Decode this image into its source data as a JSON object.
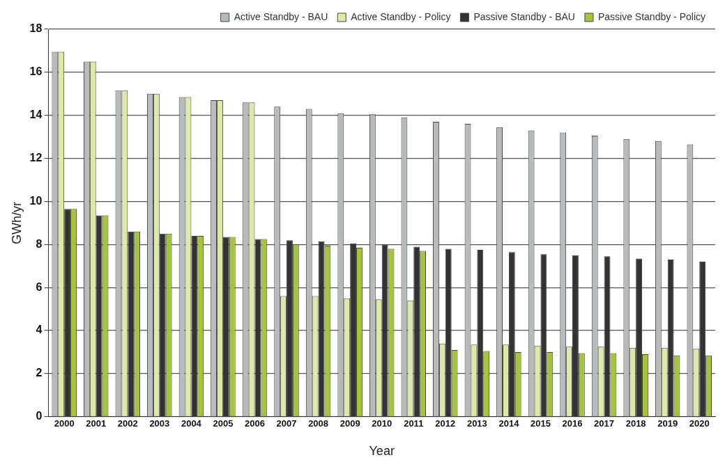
{
  "chart_data": {
    "type": "bar",
    "xlabel": "Year",
    "ylabel": "GWh/yr",
    "categories": [
      "2000",
      "2001",
      "2002",
      "2003",
      "2004",
      "2005",
      "2006",
      "2007",
      "2008",
      "2009",
      "2010",
      "2011",
      "2012",
      "2013",
      "2014",
      "2015",
      "2016",
      "2017",
      "2018",
      "2019",
      "2020"
    ],
    "series": [
      {
        "name": "Active Standby - BAU",
        "color": "#b9babc",
        "values": [
          16.95,
          16.5,
          15.15,
          15.0,
          14.85,
          14.7,
          14.6,
          14.4,
          14.3,
          14.1,
          14.05,
          13.9,
          13.7,
          13.6,
          13.45,
          13.3,
          13.2,
          13.05,
          12.9,
          12.8,
          12.65
        ]
      },
      {
        "name": "Active Standby - Policy",
        "color": "#dfe9a6",
        "values": [
          16.95,
          16.5,
          15.15,
          15.0,
          14.85,
          14.7,
          14.6,
          5.6,
          5.6,
          5.5,
          5.45,
          5.4,
          3.4,
          3.35,
          3.35,
          3.3,
          3.25,
          3.25,
          3.2,
          3.2,
          3.15
        ]
      },
      {
        "name": "Passive Standby - BAU",
        "color": "#333333",
        "values": [
          9.65,
          9.35,
          8.6,
          8.5,
          8.4,
          8.35,
          8.25,
          8.2,
          8.15,
          8.05,
          8.0,
          7.9,
          7.8,
          7.75,
          7.65,
          7.55,
          7.5,
          7.45,
          7.35,
          7.3,
          7.2
        ]
      },
      {
        "name": "Passive Standby - Policy",
        "color": "#a5c43a",
        "values": [
          9.65,
          9.35,
          8.6,
          8.5,
          8.4,
          8.35,
          8.25,
          8.0,
          7.95,
          7.85,
          7.8,
          7.7,
          3.1,
          3.05,
          3.0,
          3.0,
          2.95,
          2.95,
          2.9,
          2.85,
          2.85
        ]
      }
    ],
    "ylim": [
      0,
      18
    ],
    "yticks": [
      0,
      2,
      4,
      6,
      8,
      10,
      12,
      14,
      16,
      18
    ],
    "grid": "y",
    "legend": "top"
  }
}
